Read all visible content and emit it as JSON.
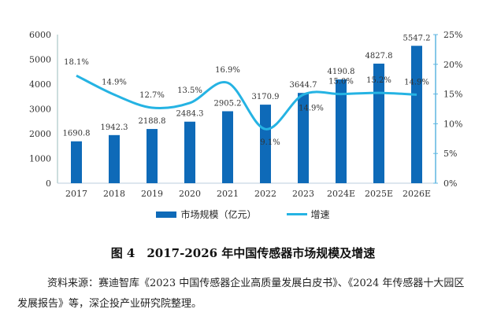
{
  "chart_data": {
    "type": "bar+line",
    "categories": [
      "2017",
      "2018",
      "2019",
      "2020",
      "2021",
      "2022",
      "2023",
      "2024E",
      "2025E",
      "2026E"
    ],
    "series": [
      {
        "name": "市场规模（亿元）",
        "type": "bar",
        "axis": "left",
        "color": "#0e6ab8",
        "values": [
          1690.8,
          1942.3,
          2188.8,
          2484.3,
          2905.2,
          3170.9,
          3644.7,
          4190.8,
          4827.8,
          5547.2
        ],
        "labels": [
          "1690.8",
          "1942.3",
          "2188.8",
          "2484.3",
          "2905.2",
          "3170.9",
          "3644.7",
          "4190.8",
          "4827.8",
          "5547.2"
        ]
      },
      {
        "name": "增速",
        "type": "line",
        "axis": "right",
        "color": "#25b3e3",
        "values": [
          18.1,
          14.9,
          12.7,
          13.5,
          16.9,
          9.1,
          14.9,
          15.0,
          15.2,
          14.9
        ],
        "labels": [
          "18.1%",
          "14.9%",
          "12.7%",
          "13.5%",
          "16.9%",
          "9.1%",
          "14.9%",
          "15.0%",
          "15.2%",
          "14.9%"
        ]
      }
    ],
    "y_left": {
      "range": [
        0,
        6000
      ],
      "ticks": [
        "0",
        "1000",
        "2000",
        "3000",
        "4000",
        "5000",
        "6000"
      ]
    },
    "y_right": {
      "range": [
        0,
        25
      ],
      "ticks": [
        "0%",
        "5%",
        "10%",
        "15%",
        "20%",
        "25%"
      ]
    },
    "grid": false,
    "legend": "bottom",
    "legend_entries": [
      "市场规模（亿元）",
      "增速"
    ]
  },
  "caption": "图 4　2017-2026 年中国传感器市场规模及增速",
  "source": "资料来源：赛迪智库《2023 中国传感器企业高质量发展白皮书》、《2024 年传感器十大园区发展报告》等，深企投产业研究院整理。"
}
